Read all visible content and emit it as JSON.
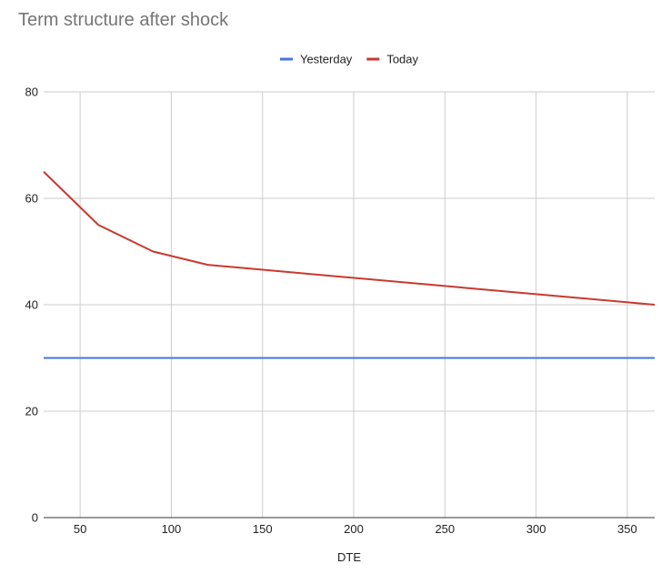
{
  "chart_data": {
    "type": "line",
    "title": "Term structure after shock",
    "xlabel": "DTE",
    "ylabel": "",
    "xlim": [
      30,
      365
    ],
    "ylim": [
      0,
      80
    ],
    "x_ticks": [
      50,
      100,
      150,
      200,
      250,
      300,
      350
    ],
    "y_ticks": [
      0,
      20,
      40,
      60,
      80
    ],
    "grid": true,
    "legend_position": "top-center",
    "series": [
      {
        "name": "Yesterday",
        "color": "#4374e0",
        "x": [
          30,
          365
        ],
        "y": [
          30,
          30
        ]
      },
      {
        "name": "Today",
        "color": "#c8392f",
        "x": [
          30,
          60,
          90,
          120,
          365
        ],
        "y": [
          65,
          55,
          50,
          47.5,
          40
        ]
      }
    ]
  },
  "colors": {
    "grid": "#cccccc",
    "axis": "#333333",
    "text": "#222222",
    "title": "#757575"
  }
}
